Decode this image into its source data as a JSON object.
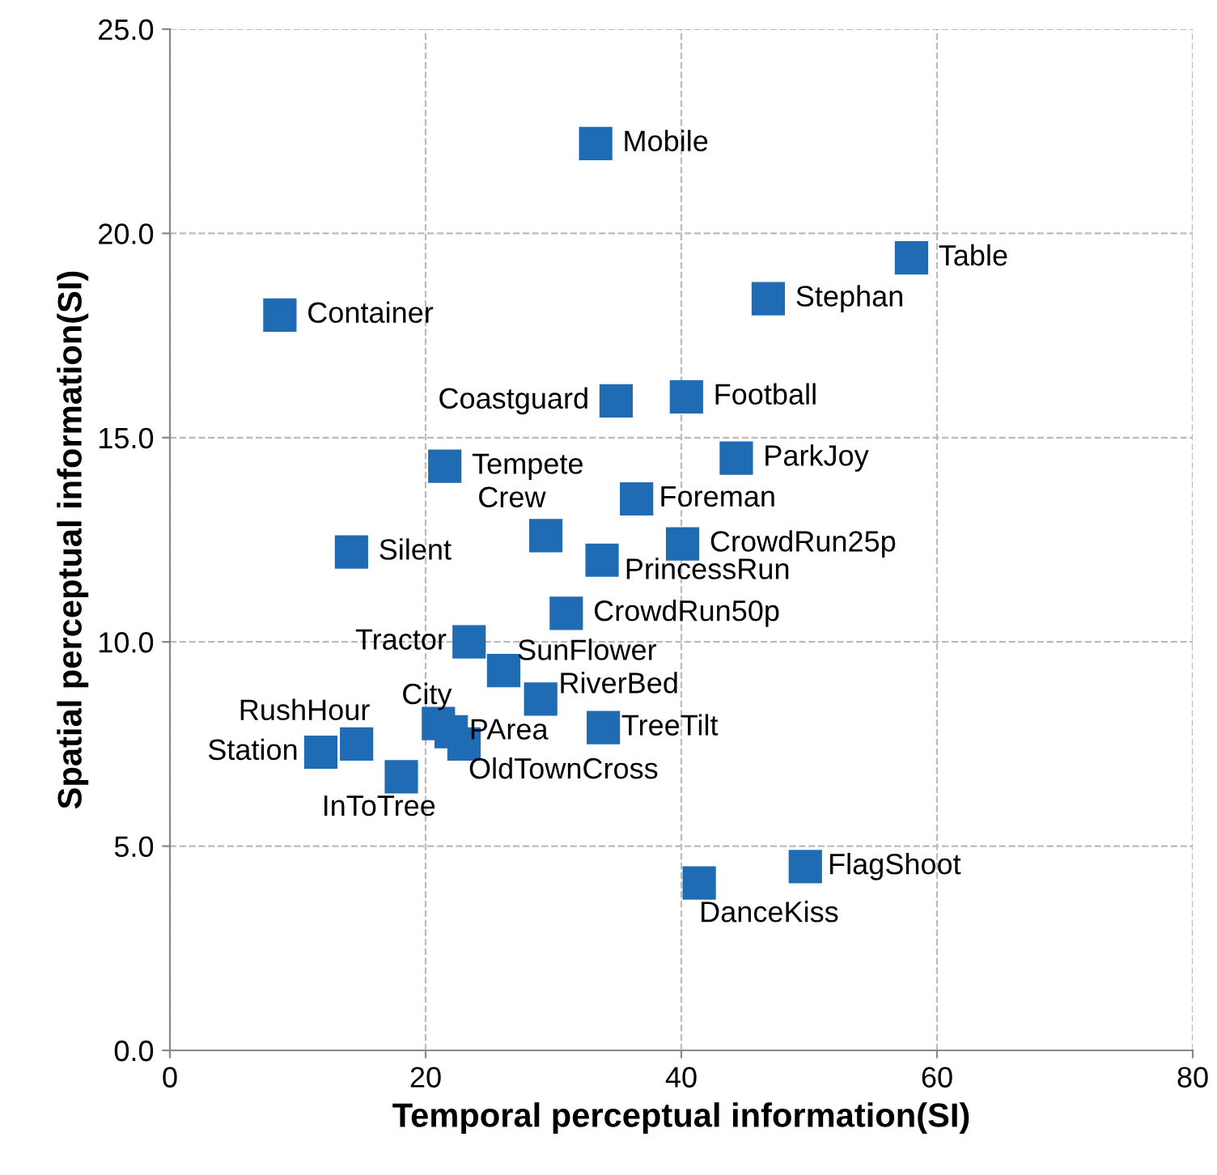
{
  "chart_data": {
    "type": "scatter",
    "xlabel": "Temporal perceptual information(SI)",
    "ylabel": "Spatial perceptual information(SI)",
    "x": [
      33.3,
      58.0,
      46.8,
      8.6,
      34.9,
      40.4,
      44.3,
      21.5,
      36.5,
      29.4,
      40.1,
      14.2,
      33.8,
      31.0,
      23.4,
      26.1,
      29.0,
      21.0,
      22.0,
      23.0,
      33.9,
      14.6,
      11.8,
      18.1,
      41.4,
      49.7
    ],
    "series": [
      {
        "color": "#1f6cb4",
        "values": [
          22.2,
          19.4,
          18.4,
          18.0,
          15.9,
          16.0,
          14.5,
          14.3,
          13.5,
          12.6,
          12.4,
          12.2,
          12.0,
          10.7,
          10.0,
          9.3,
          8.6,
          8.0,
          7.8,
          7.5,
          7.9,
          7.5,
          7.3,
          6.7,
          4.1,
          4.5
        ]
      }
    ],
    "annotations": [
      {
        "text": "Mobile",
        "x": 33.3,
        "y": 22.2
      },
      {
        "text": "Table",
        "x": 58.0,
        "y": 19.4
      },
      {
        "text": "Stephan",
        "x": 46.8,
        "y": 18.4
      },
      {
        "text": "Container",
        "x": 8.6,
        "y": 18.0
      },
      {
        "text": "Coastguard",
        "x": 34.9,
        "y": 15.9
      },
      {
        "text": "Football",
        "x": 40.4,
        "y": 16.0
      },
      {
        "text": "ParkJoy",
        "x": 44.3,
        "y": 14.5
      },
      {
        "text": "Tempete",
        "x": 21.5,
        "y": 14.3
      },
      {
        "text": "Foreman",
        "x": 36.5,
        "y": 13.5
      },
      {
        "text": "Crew",
        "x": 29.4,
        "y": 12.6
      },
      {
        "text": "CrowdRun25p",
        "x": 40.1,
        "y": 12.4
      },
      {
        "text": "Silent",
        "x": 14.2,
        "y": 12.2
      },
      {
        "text": "PrincessRun",
        "x": 33.8,
        "y": 12.0
      },
      {
        "text": "CrowdRun50p",
        "x": 31.0,
        "y": 10.7
      },
      {
        "text": "Tractor",
        "x": 23.4,
        "y": 10.0
      },
      {
        "text": "SunFlower",
        "x": 26.1,
        "y": 9.3
      },
      {
        "text": "RiverBed",
        "x": 29.0,
        "y": 8.6
      },
      {
        "text": "City",
        "x": 21.0,
        "y": 8.0
      },
      {
        "text": "PArea",
        "x": 22.0,
        "y": 7.8
      },
      {
        "text": "OldTownCross",
        "x": 23.0,
        "y": 7.5
      },
      {
        "text": "TreeTilt",
        "x": 33.9,
        "y": 7.9
      },
      {
        "text": "RushHour",
        "x": 14.6,
        "y": 7.5
      },
      {
        "text": "Station",
        "x": 11.8,
        "y": 7.3
      },
      {
        "text": "InToTree",
        "x": 18.1,
        "y": 6.7
      },
      {
        "text": "DanceKiss",
        "x": 41.4,
        "y": 4.1
      },
      {
        "text": "FlagShoot",
        "x": 49.7,
        "y": 4.5
      }
    ],
    "xlim": [
      0,
      80
    ],
    "xticks": [
      0,
      20,
      40,
      60,
      80
    ],
    "ylim": [
      0,
      25
    ],
    "yticks": [
      {
        "value": 0,
        "label": "0.0"
      },
      {
        "value": 5,
        "label": "5.0"
      },
      {
        "value": 10,
        "label": "10.0"
      },
      {
        "value": 15,
        "label": "15.0"
      },
      {
        "value": 20,
        "label": "20.0"
      },
      {
        "value": 25,
        "label": "25.0"
      }
    ],
    "grid": true,
    "marker": "square"
  }
}
